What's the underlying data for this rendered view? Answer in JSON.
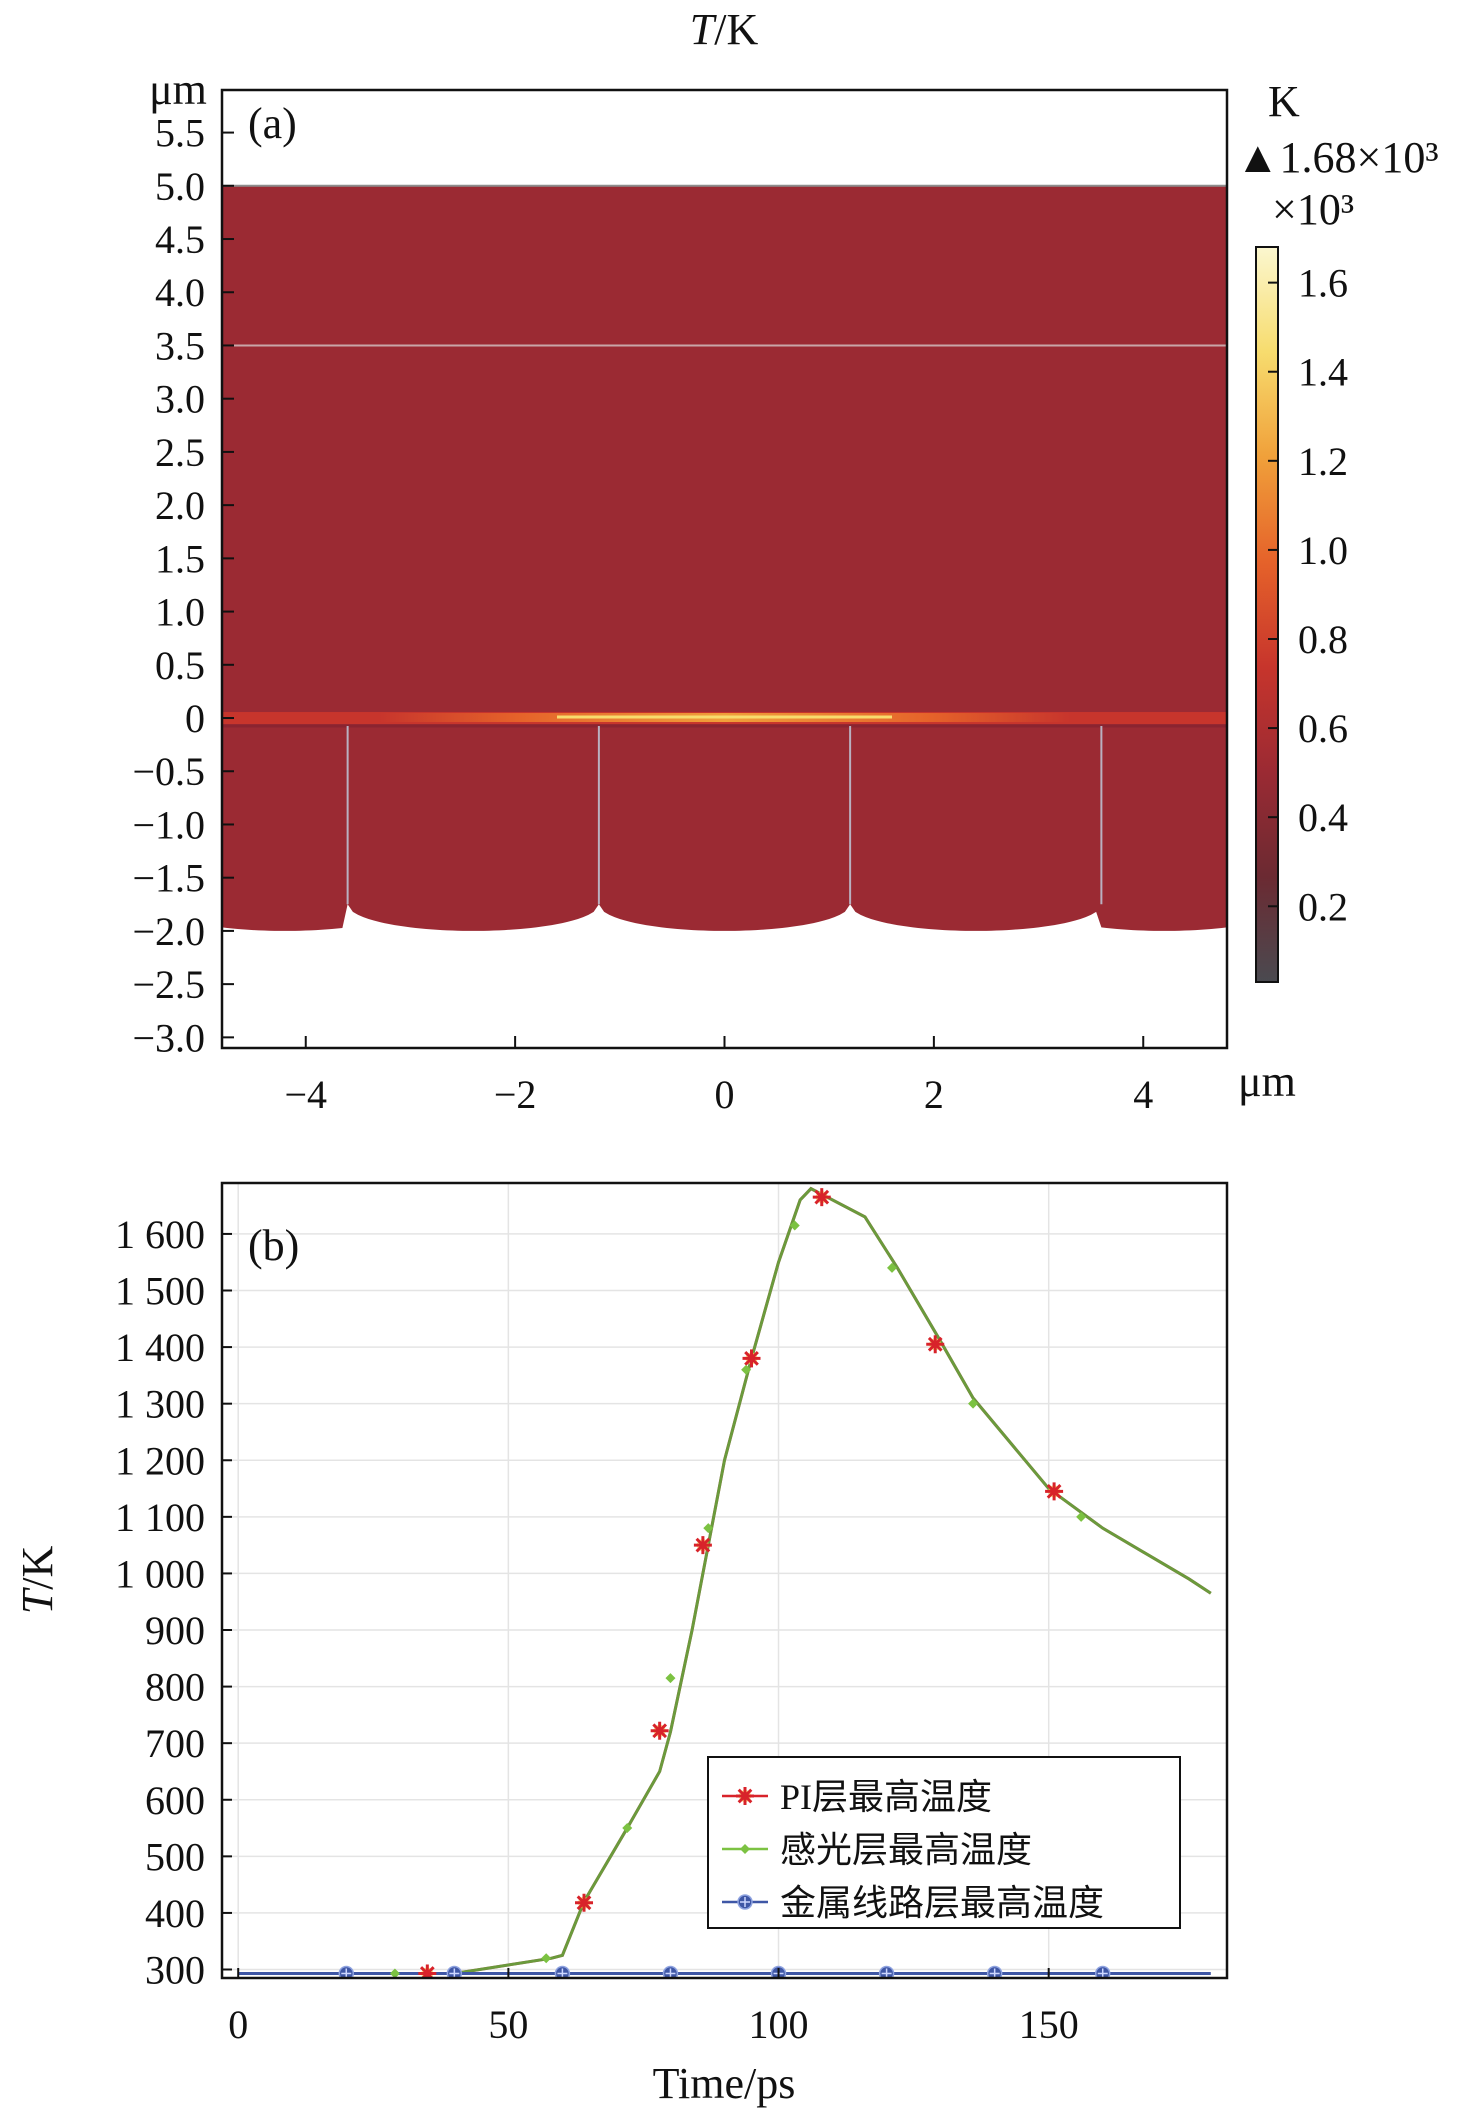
{
  "chart_data": [
    {
      "type": "heatmap",
      "panel_label": "(a)",
      "title": "T/K",
      "title_italic_part": "T",
      "title_rest": "/K",
      "x_unit": "μm",
      "y_unit": "μm",
      "xlim": [
        -4.8,
        4.8
      ],
      "ylim": [
        -3.1,
        5.9
      ],
      "x_ticks": [
        -4,
        -2,
        0,
        2,
        4
      ],
      "x_tick_labels": [
        "−4",
        "−2",
        "0",
        "2",
        "4"
      ],
      "y_ticks": [
        5.5,
        5.0,
        4.5,
        4.0,
        3.5,
        3.0,
        2.5,
        2.0,
        1.5,
        1.0,
        0.5,
        0,
        -0.5,
        -1.0,
        -1.5,
        -2.0,
        -2.5,
        -3.0
      ],
      "y_tick_labels": [
        "5.5",
        "5.0",
        "4.5",
        "4.0",
        "3.5",
        "3.0",
        "2.5",
        "2.0",
        "1.5",
        "1.0",
        "0.5",
        "0",
        "−0.5",
        "−1.0",
        "−1.5",
        "−2.0",
        "−2.5",
        "−3.0"
      ],
      "colorbar": {
        "unit": "K",
        "max_marker": "▲1.68×10³",
        "multiplier": "×10³",
        "ticks": [
          1.6,
          1.4,
          1.2,
          1.0,
          0.8,
          0.6,
          0.4,
          0.2
        ],
        "tick_labels": [
          "1.6",
          "1.4",
          "1.2",
          "1.0",
          "0.8",
          "0.6",
          "0.4",
          "0.2"
        ],
        "range": [
          0.03,
          1.68
        ],
        "colors": [
          "#4a4a50",
          "#6b2a32",
          "#9b2a33",
          "#c7352c",
          "#e5622a",
          "#f0a03a",
          "#f7dc6e",
          "#fbf7cf"
        ]
      },
      "regions": {
        "domain_color": "#9b2a33",
        "hot_band_color": "#f0a03a",
        "top_boundary_y": 5.0,
        "inner_line_y": 3.5,
        "hot_layer_y": 0,
        "vertical_lines_x": [
          -3.6,
          -1.2,
          1.2,
          3.6
        ],
        "bottom_arc_peak_y": -1.75,
        "bottom_arc_trough_y": -2.0
      }
    },
    {
      "type": "line",
      "panel_label": "(b)",
      "xlabel": "Time/ps",
      "ylabel": "T/K",
      "ylabel_italic_part": "T",
      "ylabel_rest": "/K",
      "xlim": [
        -3,
        183
      ],
      "ylim": [
        285,
        1690
      ],
      "x_ticks": [
        0,
        50,
        100,
        150
      ],
      "x_tick_labels": [
        "0",
        "50",
        "100",
        "150"
      ],
      "y_ticks": [
        300,
        400,
        500,
        600,
        700,
        800,
        900,
        1000,
        1100,
        1200,
        1300,
        1400,
        1500,
        1600
      ],
      "y_tick_labels": [
        "300",
        "400",
        "500",
        "600",
        "700",
        "800",
        "900",
        "1 000",
        "1 100",
        "1 200",
        "1 300",
        "1 400",
        "1 500",
        "1 600"
      ],
      "grid": true,
      "legend_position": "lower-right",
      "series": [
        {
          "name": "PI层最高温度",
          "color": "#d8232a",
          "marker": "asterisk",
          "x": [
            0,
            40,
            58,
            60,
            64,
            72,
            78,
            80,
            84,
            87,
            90,
            95,
            100,
            104,
            106,
            108,
            116,
            122,
            130,
            136,
            150,
            160,
            176,
            180
          ],
          "y": [
            293,
            293,
            320,
            325,
            420,
            550,
            650,
            720,
            900,
            1050,
            1200,
            1380,
            1550,
            1660,
            1680,
            1670,
            1630,
            1540,
            1410,
            1310,
            1150,
            1080,
            990,
            965
          ],
          "marker_x": [
            35,
            64,
            78,
            86,
            95,
            108,
            129,
            151
          ],
          "marker_y": [
            293,
            418,
            722,
            1050,
            1380,
            1665,
            1405,
            1145
          ]
        },
        {
          "name": "感光层最高温度",
          "color": "#7cc242",
          "marker": "diamond",
          "x": [
            0,
            40,
            58,
            60,
            64,
            72,
            78,
            80,
            84,
            87,
            90,
            95,
            100,
            104,
            106,
            108,
            116,
            122,
            130,
            136,
            150,
            160,
            176,
            180
          ],
          "y": [
            293,
            293,
            320,
            325,
            420,
            550,
            650,
            720,
            900,
            1050,
            1200,
            1380,
            1550,
            1660,
            1680,
            1670,
            1630,
            1540,
            1410,
            1310,
            1150,
            1080,
            990,
            965
          ],
          "marker_x": [
            29,
            57,
            72,
            80,
            87,
            94,
            103,
            121,
            136,
            156
          ],
          "marker_y": [
            293,
            320,
            550,
            815,
            1080,
            1360,
            1615,
            1540,
            1300,
            1100
          ]
        },
        {
          "name": "金属线路层最高温度",
          "color": "#3f57a6",
          "marker": "circle-cross",
          "x": [
            0,
            180
          ],
          "y": [
            293,
            293
          ],
          "marker_x": [
            20,
            40,
            60,
            80,
            100,
            120,
            140,
            160
          ],
          "marker_y": [
            293,
            293,
            293,
            293,
            293,
            293,
            293,
            293
          ]
        }
      ]
    }
  ]
}
